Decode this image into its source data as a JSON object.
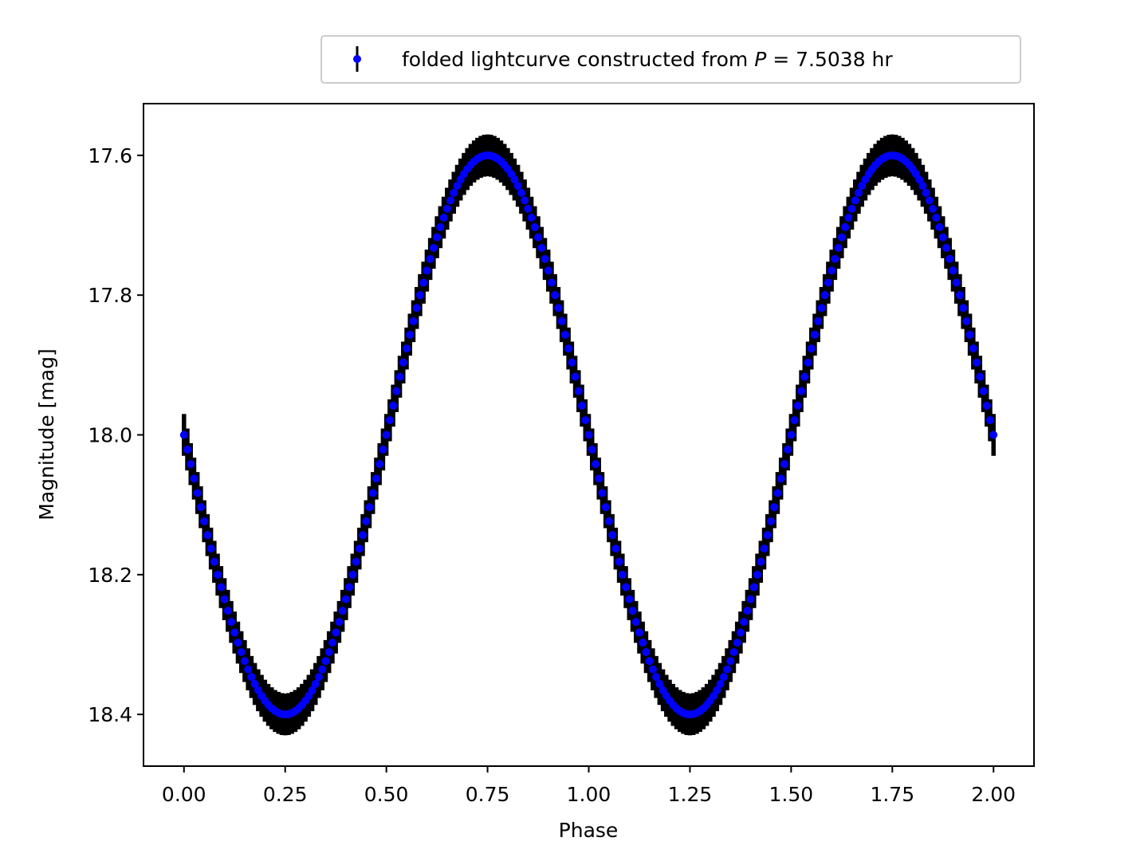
{
  "chart_data": {
    "type": "scatter",
    "title": "",
    "xlabel": "Phase",
    "ylabel": "Magnitude [mag]",
    "xlim": [
      -0.1,
      2.1
    ],
    "ylim": [
      18.474,
      17.526
    ],
    "y_inverted": true,
    "xticks": [
      "0.00",
      "0.25",
      "0.50",
      "0.75",
      "1.00",
      "1.25",
      "1.50",
      "1.75",
      "2.00"
    ],
    "yticks": [
      "17.6",
      "17.8",
      "18.0",
      "18.2",
      "18.4"
    ],
    "grid": false,
    "legend": {
      "placement": "top-right, above axes"
    },
    "legend_parts": {
      "prefix": "folded lightcurve constructed from ",
      "var": "P",
      "suffix": " = 7.5038 hr"
    },
    "series": [
      {
        "name": "folded lightcurve constructed from P = 7.5038 hr",
        "marker_color": "#0000ff",
        "errorbar_color": "#000000",
        "model": {
          "mean": 18.0,
          "amplitude": 0.4,
          "period_phase": 1.0,
          "form": "mean + amplitude * sin(2*pi*phase)"
        },
        "x_range": [
          0.0,
          2.0
        ],
        "n_points": 241,
        "yerr": 0.03
      }
    ]
  }
}
